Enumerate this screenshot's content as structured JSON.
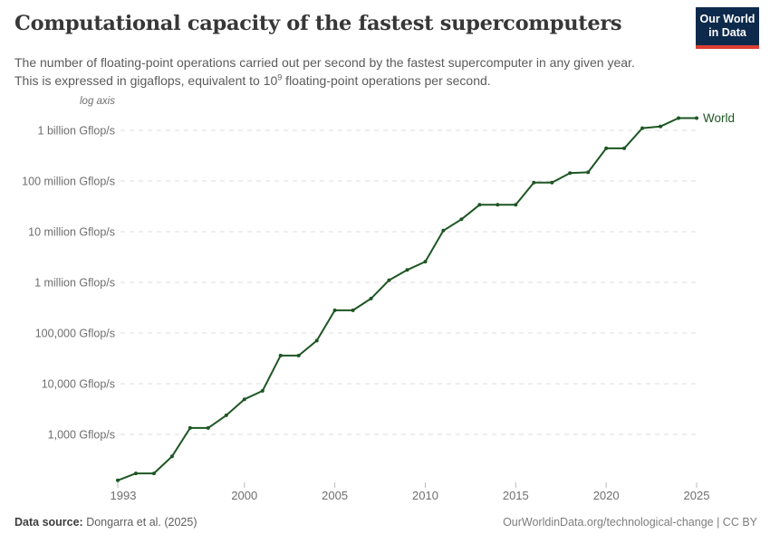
{
  "header": {
    "title": "Computational capacity of the fastest supercomputers",
    "subtitle_line1": "The number of floating-point operations carried out per second by the fastest supercomputer in any given year.",
    "subtitle_line2_pre": "This is expressed in gigaflops, equivalent to 10",
    "subtitle_sup": "9",
    "subtitle_line2_post": " floating-point operations per second.",
    "logo_line1": "Our World",
    "logo_line2": "in Data",
    "logo_bg_color": "#0d2a4d",
    "logo_bar_color": "#dc3e32"
  },
  "chart_data": {
    "type": "line",
    "log_scale": true,
    "log_axis_label": "log axis",
    "x_range": [
      1993,
      2025
    ],
    "x_ticks": [
      1993,
      2000,
      2005,
      2010,
      2015,
      2020,
      2025
    ],
    "y_ticks": [
      {
        "value": 1000,
        "label": "1,000 Gflop/s"
      },
      {
        "value": 10000,
        "label": "10,000 Gflop/s"
      },
      {
        "value": 100000,
        "label": "100,000 Gflop/s"
      },
      {
        "value": 1000000,
        "label": "1 million Gflop/s"
      },
      {
        "value": 10000000,
        "label": "10 million Gflop/s"
      },
      {
        "value": 100000000,
        "label": "100 million Gflop/s"
      },
      {
        "value": 1000000000,
        "label": "1 billion Gflop/s"
      }
    ],
    "ylabel": "Gflop/s",
    "grid": true,
    "legend_position": "end-of-line",
    "series": [
      {
        "name": "World",
        "color": "#1d5623",
        "x": [
          1993,
          1994,
          1995,
          1996,
          1997,
          1998,
          1999,
          2000,
          2001,
          2002,
          2003,
          2004,
          2005,
          2006,
          2007,
          2008,
          2009,
          2010,
          2011,
          2012,
          2013,
          2014,
          2015,
          2016,
          2017,
          2018,
          2019,
          2020,
          2021,
          2022,
          2023,
          2024,
          2025
        ],
        "values": [
          124,
          170,
          170,
          368.2,
          1338,
          1338,
          2379.6,
          4938,
          7226,
          35860,
          35860,
          70720,
          280600,
          280600,
          478200,
          1105000,
          1759000,
          2566000,
          10510000,
          17590000,
          33862700,
          33862700,
          33862700,
          93014600,
          93014600,
          143500000,
          148600000,
          442010000,
          442010000,
          1102000000,
          1194000000,
          1742000000,
          1742000000
        ]
      }
    ],
    "colors": {
      "grid": "#dcdcdc",
      "tick": "#bcbcbc",
      "axis_text": "#6e6e6e"
    }
  },
  "footer": {
    "source_label": "Data source:",
    "source_value": " Dongarra et al. (2025)",
    "right_text": "OurWorldinData.org/technological-change | CC BY"
  }
}
